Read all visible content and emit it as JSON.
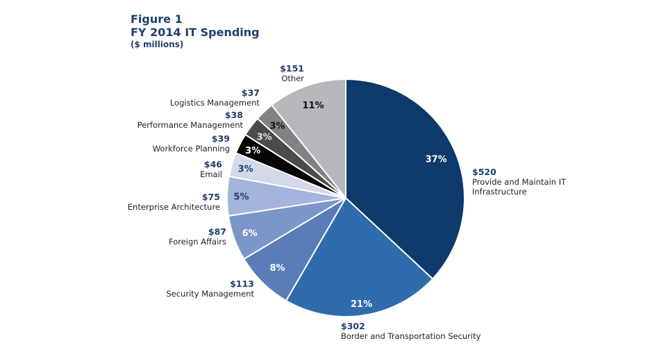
{
  "chart_data": {
    "type": "pie",
    "title": "Figure 1",
    "subtitle": "FY 2014 IT Spending",
    "unit": "($ millions)",
    "slices": [
      {
        "label": "Provide and Maintain IT Infrastructure",
        "value": 520,
        "value_label": "$520",
        "percent": "37%",
        "color": "#0e3a6c",
        "text_color": "#ffffff"
      },
      {
        "label": "Border and Transportation Security",
        "value": 302,
        "value_label": "$302",
        "percent": "21%",
        "color": "#2f6cab",
        "text_color": "#ffffff"
      },
      {
        "label": "Security Management",
        "value": 113,
        "value_label": "$113",
        "percent": "8%",
        "color": "#5a7dba",
        "text_color": "#ffffff"
      },
      {
        "label": "Foreign Affairs",
        "value": 87,
        "value_label": "$87",
        "percent": "6%",
        "color": "#7d96c9",
        "text_color": "#ffffff"
      },
      {
        "label": "Enterprise Architecture",
        "value": 75,
        "value_label": "$75",
        "percent": "5%",
        "color": "#a4b4da",
        "text_color": "#1f3f6e"
      },
      {
        "label": "Email",
        "value": 46,
        "value_label": "$46",
        "percent": "3%",
        "color": "#d3d9eb",
        "text_color": "#1f3f6e"
      },
      {
        "label": "Workforce Planning",
        "value": 39,
        "value_label": "$39",
        "percent": "3%",
        "color": "#050505",
        "text_color": "#ffffff"
      },
      {
        "label": "Performance Management",
        "value": 38,
        "value_label": "$38",
        "percent": "3%",
        "color": "#4b4b4e",
        "text_color": "#e0e0e0"
      },
      {
        "label": "Logistics Management",
        "value": 37,
        "value_label": "$37",
        "percent": "3%",
        "color": "#828285",
        "text_color": "#111111"
      },
      {
        "label": "Other",
        "value": 151,
        "value_label": "$151",
        "percent": "11%",
        "color": "#b6b8bc",
        "text_color": "#111111"
      }
    ],
    "start": "top",
    "direction": "clockwise"
  }
}
